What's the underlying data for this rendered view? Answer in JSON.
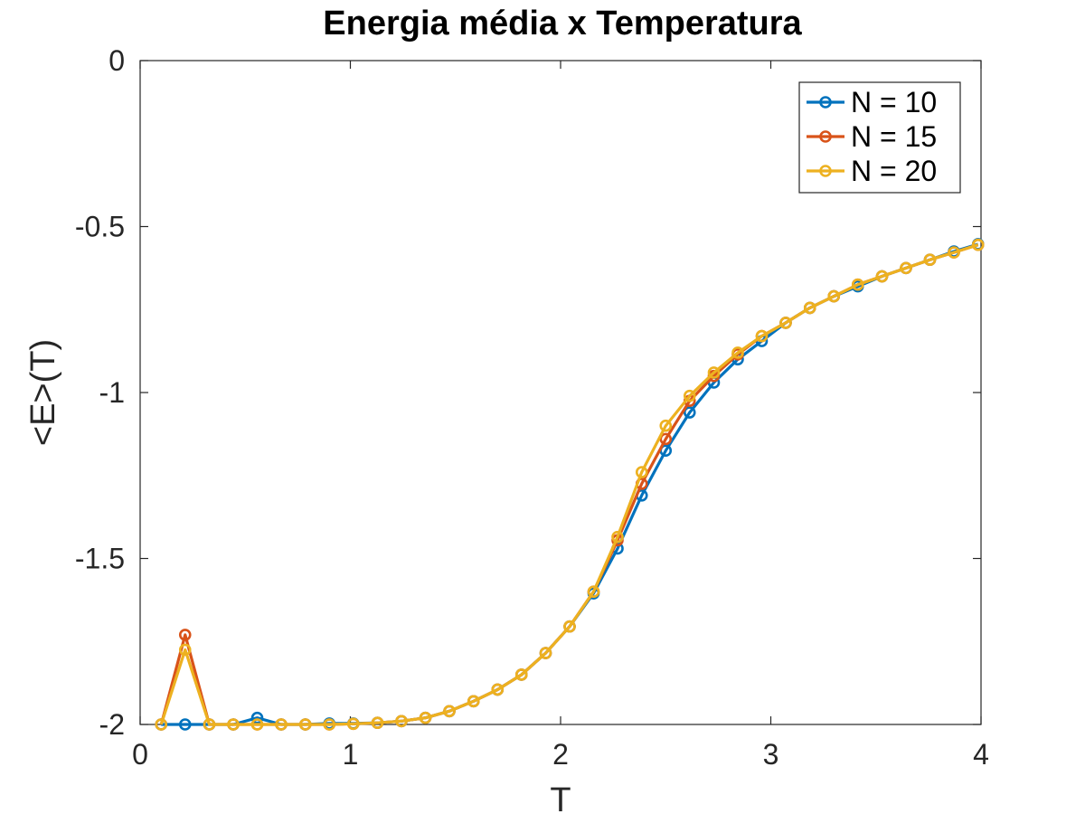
{
  "chart_data": {
    "type": "line",
    "title": "Energia média x Temperatura",
    "xlabel": "T",
    "ylabel": "<E>(T)",
    "xlim": [
      0,
      4
    ],
    "ylim": [
      -2,
      0
    ],
    "xticks": [
      0,
      1,
      2,
      3,
      4
    ],
    "xtick_labels": [
      "0",
      "1",
      "2",
      "3",
      "4"
    ],
    "yticks": [
      -2,
      -1.5,
      -1,
      -0.5,
      0
    ],
    "ytick_labels": [
      "-2",
      "-1.5",
      "-1",
      "-0.5",
      "0"
    ],
    "grid": false,
    "legend_position": "top-right",
    "marker": "circle",
    "x": [
      0.1,
      0.214,
      0.329,
      0.443,
      0.557,
      0.671,
      0.786,
      0.9,
      1.014,
      1.129,
      1.243,
      1.357,
      1.471,
      1.586,
      1.7,
      1.814,
      1.929,
      2.043,
      2.157,
      2.271,
      2.386,
      2.5,
      2.614,
      2.729,
      2.843,
      2.957,
      3.071,
      3.186,
      3.3,
      3.414,
      3.529,
      3.643,
      3.757,
      3.871,
      3.986
    ],
    "series": [
      {
        "name": "N = 10",
        "color": "#0072BD",
        "values": [
          -2.0,
          -2.0,
          -2.0,
          -2.0,
          -1.98,
          -2.0,
          -2.0,
          -1.997,
          -1.997,
          -1.995,
          -1.99,
          -1.98,
          -1.96,
          -1.93,
          -1.895,
          -1.85,
          -1.785,
          -1.705,
          -1.605,
          -1.47,
          -1.31,
          -1.175,
          -1.06,
          -0.97,
          -0.9,
          -0.845,
          -0.79,
          -0.745,
          -0.71,
          -0.68,
          -0.65,
          -0.625,
          -0.6,
          -0.575,
          -0.553
        ]
      },
      {
        "name": "N = 15",
        "color": "#D95319",
        "values": [
          -2.0,
          -1.73,
          -2.0,
          -2.0,
          -2.0,
          -2.0,
          -2.0,
          -2.0,
          -1.998,
          -1.995,
          -1.99,
          -1.98,
          -1.96,
          -1.93,
          -1.895,
          -1.85,
          -1.785,
          -1.705,
          -1.6,
          -1.445,
          -1.275,
          -1.14,
          -1.025,
          -0.95,
          -0.885,
          -0.83,
          -0.79,
          -0.745,
          -0.71,
          -0.675,
          -0.65,
          -0.625,
          -0.6,
          -0.578,
          -0.555
        ]
      },
      {
        "name": "N = 20",
        "color": "#EDB120",
        "values": [
          -2.0,
          -1.775,
          -2.0,
          -2.0,
          -2.0,
          -2.0,
          -2.0,
          -2.0,
          -1.998,
          -1.995,
          -1.99,
          -1.98,
          -1.96,
          -1.93,
          -1.895,
          -1.85,
          -1.785,
          -1.705,
          -1.6,
          -1.435,
          -1.24,
          -1.1,
          -1.01,
          -0.94,
          -0.88,
          -0.83,
          -0.79,
          -0.745,
          -0.71,
          -0.675,
          -0.65,
          -0.625,
          -0.6,
          -0.578,
          -0.555
        ]
      }
    ]
  }
}
